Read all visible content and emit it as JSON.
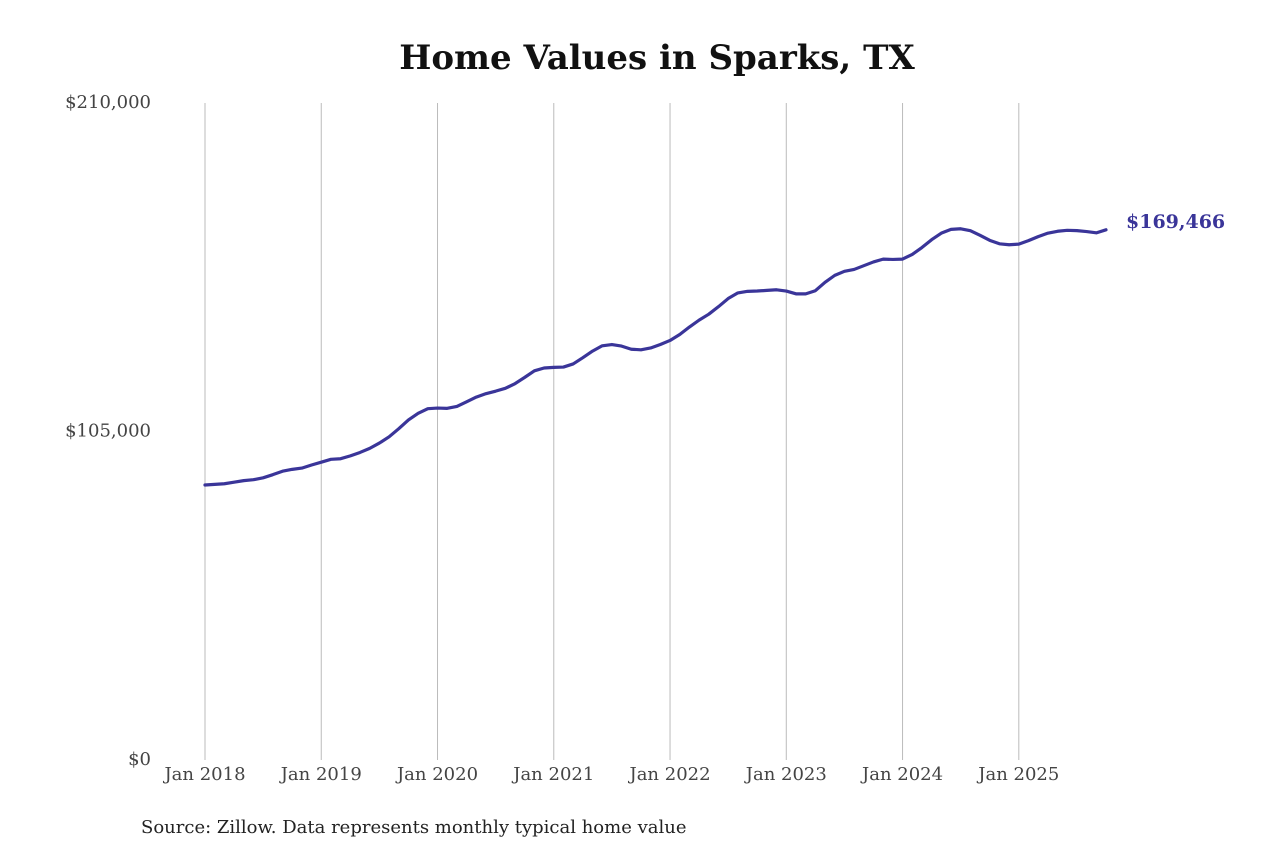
{
  "chart_data": {
    "type": "line",
    "title": "Home Values in Sparks, TX",
    "source": "Source: Zillow. Data represents monthly typical home value",
    "x": [
      "2018-01",
      "2018-02",
      "2018-03",
      "2018-04",
      "2018-05",
      "2018-06",
      "2018-07",
      "2018-08",
      "2018-09",
      "2018-10",
      "2018-11",
      "2018-12",
      "2019-01",
      "2019-02",
      "2019-03",
      "2019-04",
      "2019-05",
      "2019-06",
      "2019-07",
      "2019-08",
      "2019-09",
      "2019-10",
      "2019-11",
      "2019-12",
      "2020-01",
      "2020-02",
      "2020-03",
      "2020-04",
      "2020-05",
      "2020-06",
      "2020-07",
      "2020-08",
      "2020-09",
      "2020-10",
      "2020-11",
      "2020-12",
      "2021-01",
      "2021-02",
      "2021-03",
      "2021-04",
      "2021-05",
      "2021-06",
      "2021-07",
      "2021-08",
      "2021-09",
      "2021-10",
      "2021-11",
      "2021-12",
      "2022-01",
      "2022-02",
      "2022-03",
      "2022-04",
      "2022-05",
      "2022-06",
      "2022-07",
      "2022-08",
      "2022-09",
      "2022-10",
      "2022-11",
      "2022-12",
      "2023-01",
      "2023-02",
      "2023-03",
      "2023-04",
      "2023-05",
      "2023-06",
      "2023-07",
      "2023-08",
      "2023-09",
      "2023-10",
      "2023-11",
      "2023-12",
      "2024-01",
      "2024-02",
      "2024-03",
      "2024-04",
      "2024-05",
      "2024-06",
      "2024-07",
      "2024-08",
      "2024-09",
      "2024-10",
      "2024-11",
      "2024-12",
      "2025-01",
      "2025-02",
      "2025-03",
      "2025-04",
      "2025-05",
      "2025-06",
      "2025-07",
      "2025-08",
      "2025-09",
      "2025-10"
    ],
    "series": [
      {
        "name": "Sparks, TX",
        "color": "#3a3599",
        "values": [
          87900,
          88100,
          88300,
          88800,
          89300,
          89600,
          90200,
          91200,
          92300,
          92900,
          93300,
          94300,
          95200,
          96100,
          96300,
          97200,
          98300,
          99600,
          101300,
          103300,
          105900,
          108700,
          110800,
          112300,
          112500,
          112400,
          113000,
          114500,
          116000,
          117100,
          117900,
          118800,
          120300,
          122300,
          124400,
          125300,
          125500,
          125600,
          126600,
          128600,
          130700,
          132400,
          132800,
          132300,
          131300,
          131100,
          131700,
          132800,
          134100,
          136000,
          138400,
          140600,
          142500,
          144900,
          147500,
          149300,
          149800,
          149900,
          150100,
          150300,
          149900,
          149000,
          149000,
          150000,
          152700,
          154900,
          156200,
          156800,
          158000,
          159200,
          160100,
          160000,
          160100,
          161600,
          163800,
          166300,
          168400,
          169600,
          169800,
          169200,
          167700,
          166100,
          165000,
          164700,
          164900,
          166000,
          167300,
          168400,
          169000,
          169300,
          169200,
          168900,
          168500,
          169466
        ],
        "value_labels": [
          null,
          null,
          null,
          null,
          null,
          null,
          null,
          null,
          null,
          null,
          null,
          null,
          null,
          null,
          null,
          null,
          null,
          null,
          null,
          null,
          null,
          null,
          null,
          null,
          null,
          null,
          null,
          null,
          null,
          null,
          null,
          null,
          null,
          null,
          null,
          null,
          null,
          null,
          null,
          null,
          null,
          null,
          null,
          null,
          null,
          null,
          null,
          null,
          null,
          null,
          null,
          null,
          null,
          null,
          null,
          null,
          null,
          null,
          null,
          null,
          null,
          null,
          null,
          null,
          null,
          null,
          null,
          null,
          null,
          null,
          null,
          null,
          null,
          null,
          null,
          null,
          null,
          null,
          null,
          null,
          null,
          null,
          null,
          null,
          null,
          null,
          null,
          null,
          null,
          null,
          null,
          null,
          null,
          "$169,466"
        ]
      }
    ],
    "xlim": [
      "2018-01",
      "2025-10"
    ],
    "xticks": [
      {
        "value": "2018-01",
        "label": "Jan 2018"
      },
      {
        "value": "2019-01",
        "label": "Jan 2019"
      },
      {
        "value": "2020-01",
        "label": "Jan 2020"
      },
      {
        "value": "2021-01",
        "label": "Jan 2021"
      },
      {
        "value": "2022-01",
        "label": "Jan 2022"
      },
      {
        "value": "2023-01",
        "label": "Jan 2023"
      },
      {
        "value": "2024-01",
        "label": "Jan 2024"
      },
      {
        "value": "2025-01",
        "label": "Jan 2025"
      }
    ],
    "ylim": [
      0,
      210000
    ],
    "yticks": [
      {
        "value": 0,
        "label": "$0"
      },
      {
        "value": 105000,
        "label": "$105,000"
      },
      {
        "value": 210000,
        "label": "$210,000"
      }
    ],
    "grid": "x"
  }
}
